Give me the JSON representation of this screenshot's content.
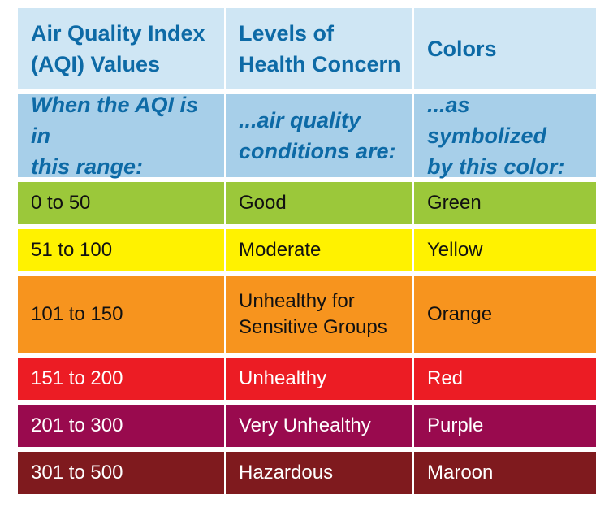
{
  "header": {
    "col1": "Air Quality Index\n(AQI) Values",
    "col2": "Levels of\nHealth Concern",
    "col3": "Colors"
  },
  "subheader": {
    "col1": "When the AQI is in\nthis range:",
    "col2": "...air quality\nconditions are:",
    "col3": "...as symbolized\nby this color:"
  },
  "rows": [
    {
      "range": "0 to 50",
      "level": "Good",
      "color": "Green",
      "bg": "#9bc83a"
    },
    {
      "range": "51 to 100",
      "level": "Moderate",
      "color": "Yellow",
      "bg": "#fff200"
    },
    {
      "range": "101 to 150",
      "level": "Unhealthy for\nSensitive Groups",
      "color": "Orange",
      "bg": "#f7941e"
    },
    {
      "range": "151 to 200",
      "level": "Unhealthy",
      "color": "Red",
      "bg": "#ec1c24"
    },
    {
      "range": "201 to 300",
      "level": "Very Unhealthy",
      "color": "Purple",
      "bg": "#990a4e"
    },
    {
      "range": "301 to 500",
      "level": "Hazardous",
      "color": "Maroon",
      "bg": "#7f1a1e"
    }
  ],
  "colors": {
    "header_bg": "#cfe6f4",
    "subheader_bg": "#a7cfe9",
    "header_text": "#0d6aa6"
  }
}
